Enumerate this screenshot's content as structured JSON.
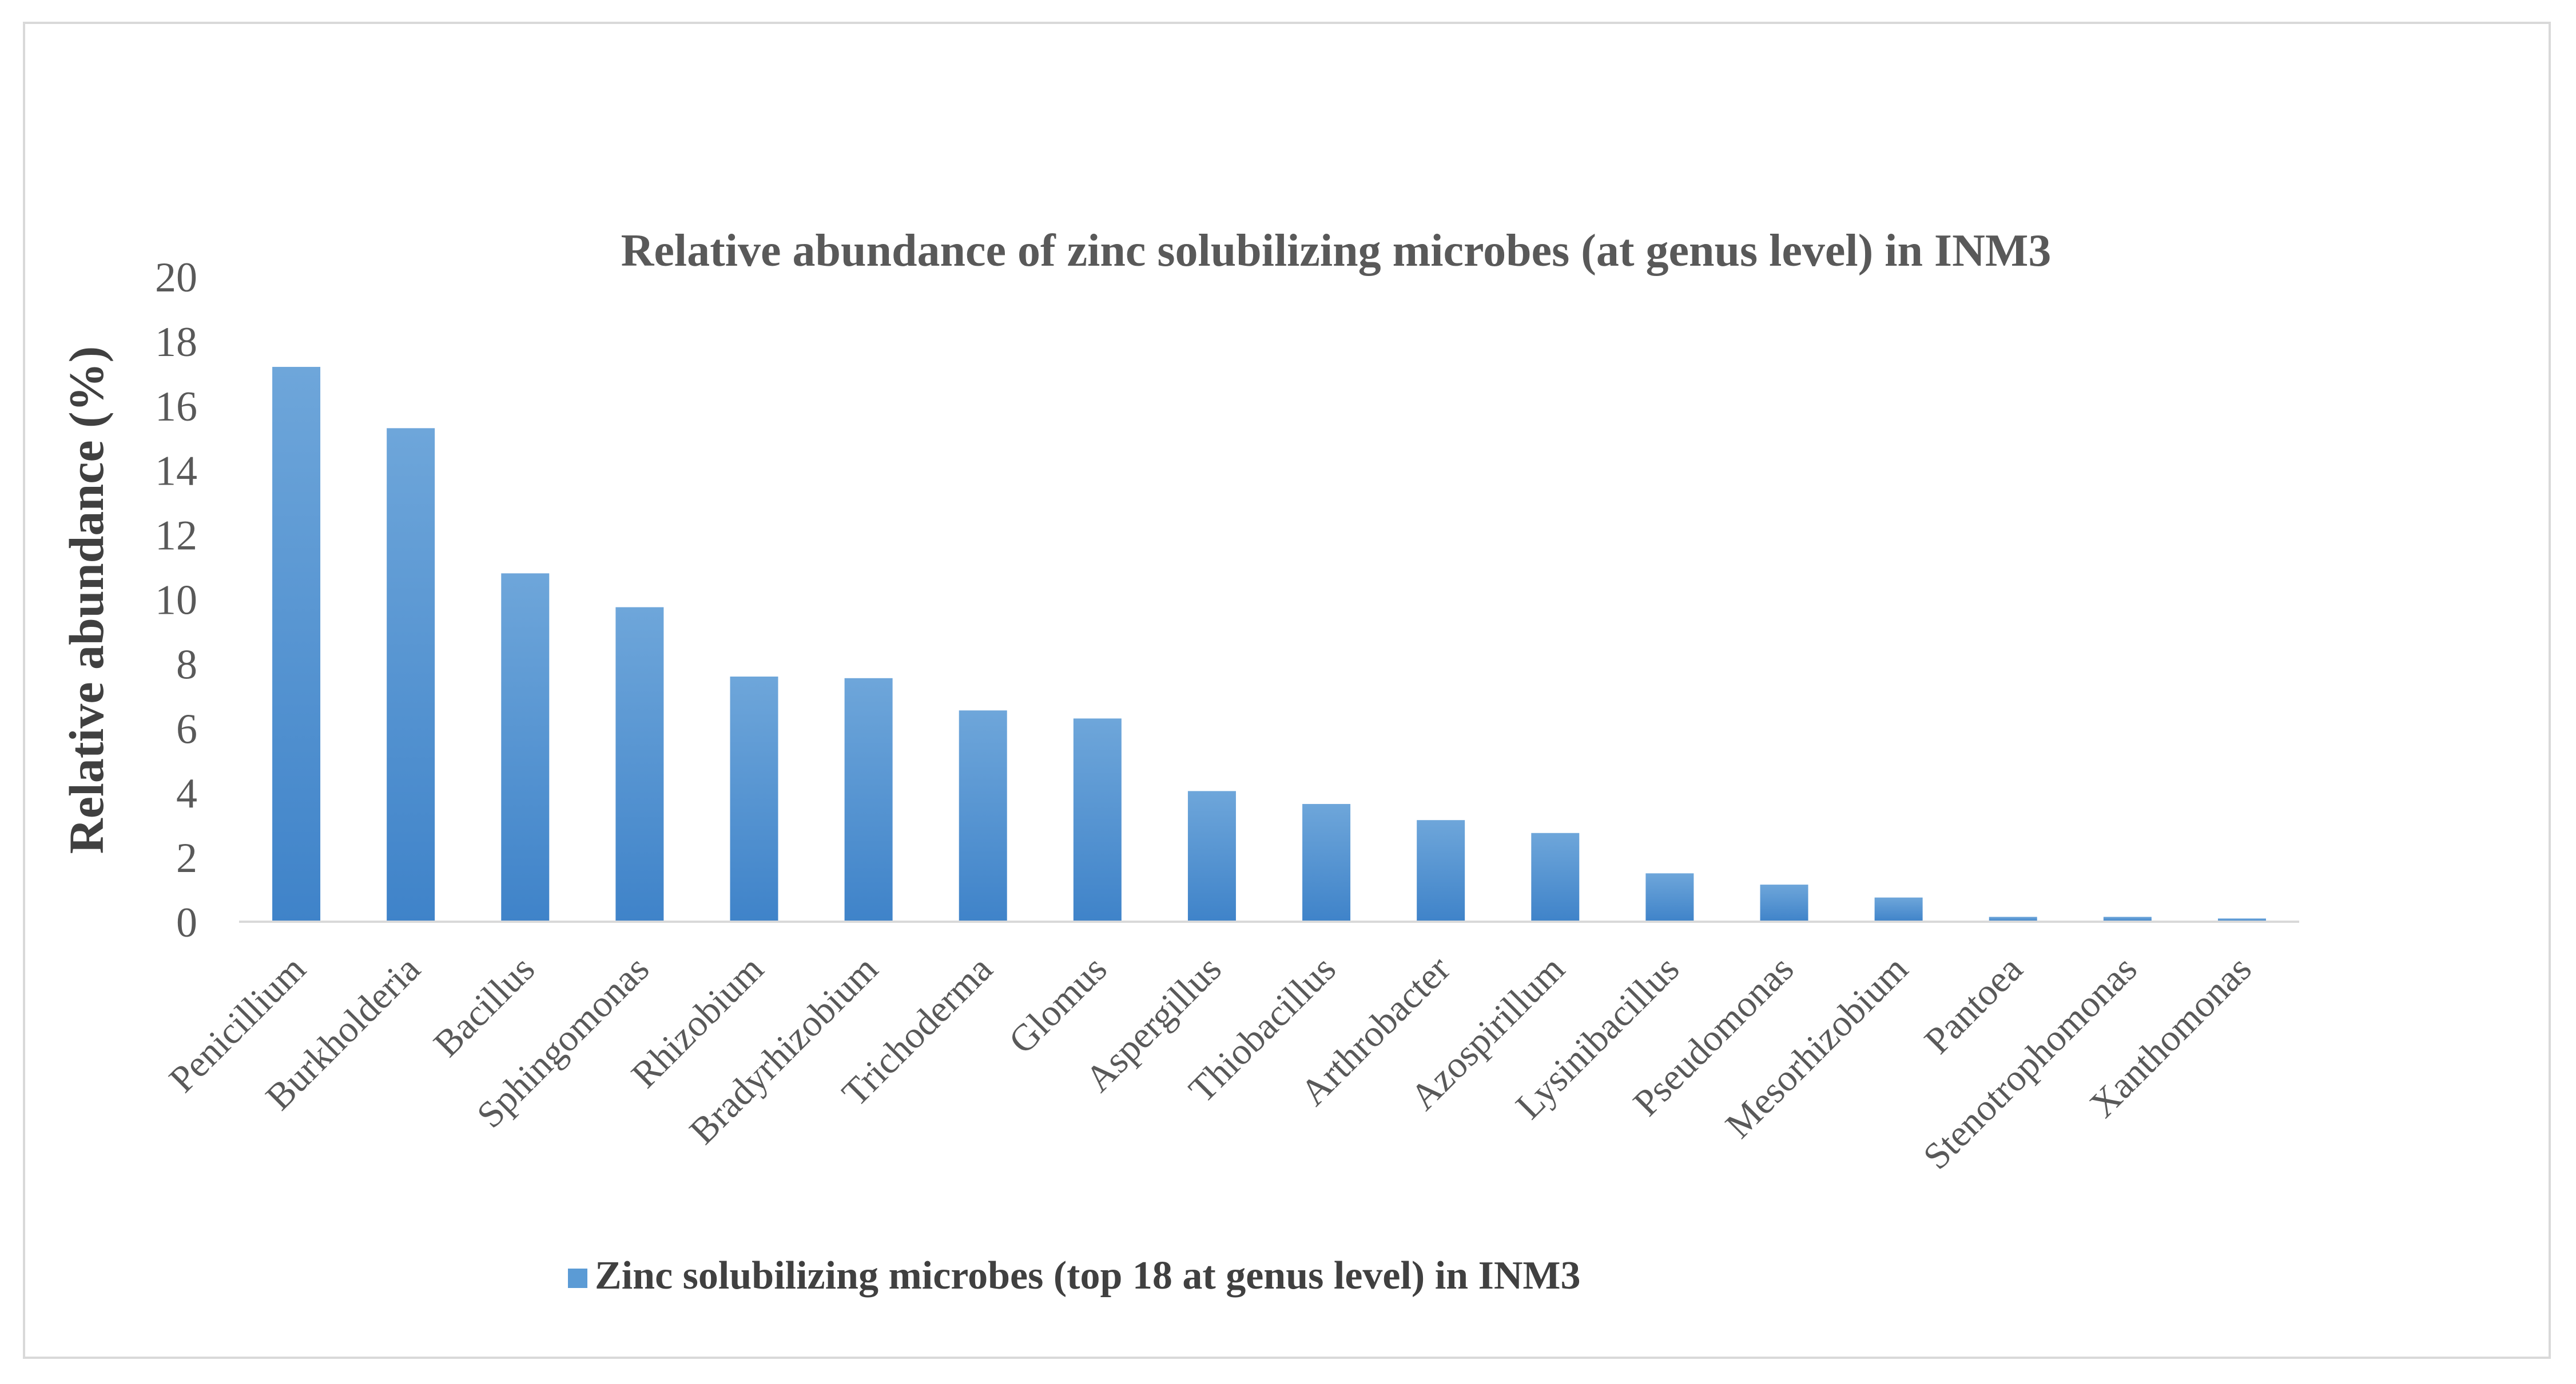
{
  "chart_data": {
    "type": "bar",
    "title": "Relative abundance of zinc solubilizing microbes (at genus level) in INM3",
    "ylabel": "Relative abundance (%)",
    "xlabel": "",
    "ylim": [
      0,
      20
    ],
    "yticks": [
      0,
      2,
      4,
      6,
      8,
      10,
      12,
      14,
      16,
      18,
      20
    ],
    "grid": false,
    "legend_position": "bottom-left",
    "categories": [
      "Penicillium",
      "Burkholderia",
      "Bacillus",
      "Sphingomonas",
      "Rhizobium",
      "Bradyrhizobium",
      "Trichoderma",
      "Glomus",
      "Aspergillus",
      "Thiobacillus",
      "Arthrobacter",
      "Azospirillum",
      "Lysinibacillus",
      "Pseudomonas",
      "Mesorhizobium",
      "Pantoea",
      "Stenotrophomonas",
      "Xanthomonas"
    ],
    "series": [
      {
        "name": "Zinc solubilizing microbes (top 18 at genus level) in INM3",
        "color": "#5B9BD5",
        "values": [
          17.2,
          15.3,
          10.8,
          9.75,
          7.6,
          7.55,
          6.55,
          6.3,
          4.05,
          3.65,
          3.15,
          2.75,
          1.5,
          1.15,
          0.75,
          0.15,
          0.15,
          0.1
        ]
      }
    ]
  }
}
